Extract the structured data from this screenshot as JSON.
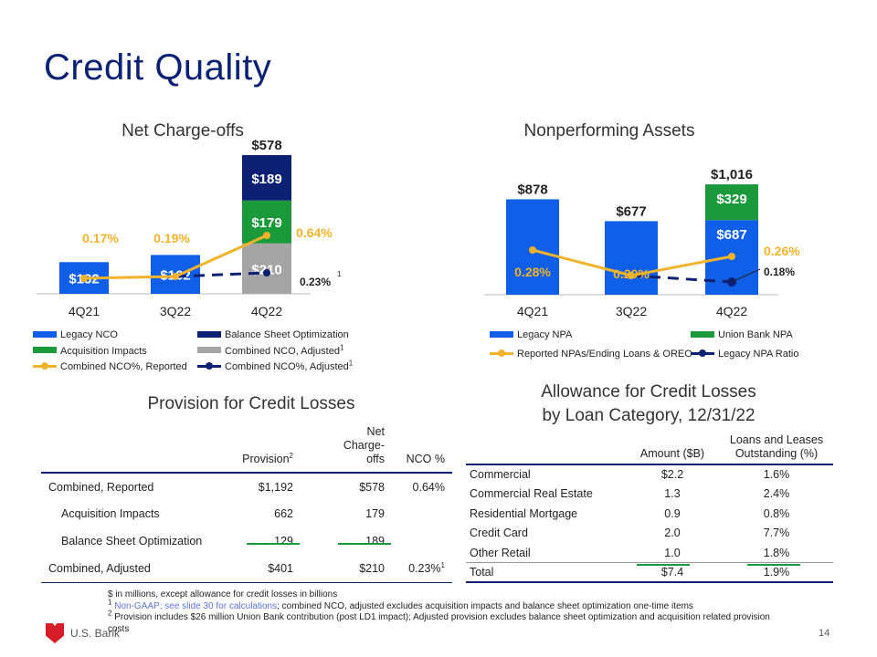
{
  "page": {
    "title": "Credit Quality",
    "page_number": "14",
    "logo_text": "U.S. Bank"
  },
  "colors": {
    "blue": "#0f5fe8",
    "navy": "#0c2074",
    "green": "#1a9a3a",
    "gray": "#a5a5a5",
    "gold": "#f2b32a"
  },
  "chart_data": [
    {
      "id": "nco",
      "type": "bar",
      "title": "Net Charge-offs",
      "categories": [
        "4Q21",
        "3Q22",
        "4Q22"
      ],
      "series": [
        {
          "name": "Legacy NCO",
          "values": [
            132,
            162,
            null
          ],
          "labels": [
            "$132",
            "$162",
            ""
          ]
        },
        {
          "name": "Combined NCO, Adjusted",
          "values": [
            null,
            null,
            210
          ],
          "labels": [
            "",
            "",
            "$210"
          ]
        },
        {
          "name": "Acquisition Impacts",
          "values": [
            null,
            null,
            179
          ],
          "labels": [
            "",
            "",
            "$179"
          ]
        },
        {
          "name": "Balance Sheet Optimization",
          "values": [
            null,
            null,
            189
          ],
          "labels": [
            "",
            "",
            "$189"
          ]
        }
      ],
      "totals": [
        "",
        "",
        "$578"
      ],
      "lines": [
        {
          "name": "Combined NCO%, Reported",
          "values": [
            0.17,
            0.19,
            0.64
          ],
          "labels": [
            "0.17%",
            "0.19%",
            "0.64%"
          ]
        },
        {
          "name": "Combined NCO%, Adjusted",
          "values": [
            null,
            0.19,
            0.23
          ],
          "labels": [
            "",
            "",
            "0.23%"
          ],
          "label_note": "1"
        }
      ],
      "legend": [
        {
          "label": "Legacy NCO",
          "kind": "box",
          "color": "#0f5fe8",
          "sup": ""
        },
        {
          "label": "Balance Sheet Optimization",
          "kind": "box",
          "color": "#0c2074",
          "sup": ""
        },
        {
          "label": "Acquisition Impacts",
          "kind": "box",
          "color": "#1a9a3a",
          "sup": ""
        },
        {
          "label": "Combined NCO, Adjusted",
          "kind": "box",
          "color": "#a5a5a5",
          "sup": "1"
        },
        {
          "label": "Combined NCO%, Reported",
          "kind": "line",
          "color": "#f2b32a",
          "sup": ""
        },
        {
          "label": "Combined NCO%, Adjusted",
          "kind": "line",
          "color": "#0c2074",
          "sup": "1"
        }
      ]
    },
    {
      "id": "npa",
      "type": "bar",
      "title": "Nonperforming Assets",
      "categories": [
        "4Q21",
        "3Q22",
        "4Q22"
      ],
      "series": [
        {
          "name": "Legacy NPA",
          "values": [
            878,
            677,
            687
          ],
          "labels": [
            "",
            "",
            "$687"
          ]
        },
        {
          "name": "Union Bank NPA",
          "values": [
            null,
            null,
            329
          ],
          "labels": [
            "",
            "",
            "$329"
          ]
        }
      ],
      "totals": [
        "$878",
        "$677",
        "$1,016"
      ],
      "lines": [
        {
          "name": "Reported NPAs/Ending Loans & OREO",
          "values": [
            0.28,
            0.2,
            0.26
          ],
          "labels": [
            "0.28%",
            "0.20%",
            "0.26%"
          ]
        },
        {
          "name": "Legacy NPA Ratio",
          "values": [
            null,
            0.2,
            0.18
          ],
          "labels": [
            "",
            "",
            "0.18%"
          ]
        }
      ],
      "legend": [
        {
          "label": "Legacy NPA",
          "kind": "box",
          "color": "#0f5fe8",
          "sup": ""
        },
        {
          "label": "Union Bank NPA",
          "kind": "box",
          "color": "#1a9a3a",
          "sup": ""
        },
        {
          "label": "Reported NPAs/Ending Loans & OREO",
          "kind": "line",
          "color": "#f2b32a",
          "sup": ""
        },
        {
          "label": "Legacy NPA Ratio",
          "kind": "line",
          "color": "#0c2074",
          "sup": ""
        }
      ]
    },
    {
      "id": "provision",
      "type": "table",
      "title": "Provision for Credit Losses",
      "columns": [
        {
          "label": "",
          "sup": ""
        },
        {
          "label": "Provision",
          "sup": "2"
        },
        {
          "label": "Net Charge-offs",
          "sup": ""
        },
        {
          "label": "NCO %",
          "sup": ""
        }
      ],
      "rows": [
        {
          "label": "Combined, Reported",
          "indent": false,
          "cells": [
            "$1,192",
            "$578",
            "0.64%"
          ],
          "sup": ""
        },
        {
          "label": "Acquisition Impacts",
          "indent": true,
          "cells": [
            "662",
            "179",
            ""
          ],
          "sup": ""
        },
        {
          "label": "Balance Sheet Optimization",
          "indent": true,
          "cells": [
            "129",
            "189",
            ""
          ],
          "sup": ""
        },
        {
          "label": "Combined, Adjusted",
          "indent": false,
          "cells": [
            "$401",
            "$210",
            "0.23%"
          ],
          "sup": "1"
        }
      ]
    },
    {
      "id": "allowance",
      "type": "table",
      "title_lines": [
        "Allowance for Credit Losses",
        "by Loan Category, 12/31/22"
      ],
      "columns": [
        "",
        "Amount ($B)",
        "Loans and Leases Outstanding (%)"
      ],
      "rows": [
        {
          "label": "Commercial",
          "cells": [
            "$2.2",
            "1.6%"
          ]
        },
        {
          "label": "Commercial Real Estate",
          "cells": [
            "1.3",
            "2.4%"
          ]
        },
        {
          "label": "Residential Mortgage",
          "cells": [
            "0.9",
            "0.8%"
          ]
        },
        {
          "label": "Credit Card",
          "cells": [
            "2.0",
            "7.7%"
          ]
        },
        {
          "label": "Other Retail",
          "cells": [
            "1.0",
            "1.8%"
          ]
        },
        {
          "label": "Total",
          "cells": [
            "$7.4",
            "1.9%"
          ]
        }
      ]
    }
  ],
  "footnotes": {
    "line0": "$ in millions, except allowance for credit losses in billions",
    "line1_num": "1",
    "line1_link": "Non-GAAP; see slide 30 for calculations",
    "line1_rest": "; combined NCO, adjusted excludes acquisition impacts and balance sheet optimization one-time items",
    "line2_num": "2",
    "line2_text": "Provision includes $26 million Union Bank contribution (post LD1 impact); Adjusted provision excludes balance sheet optimization and acquisition related provision costs"
  }
}
